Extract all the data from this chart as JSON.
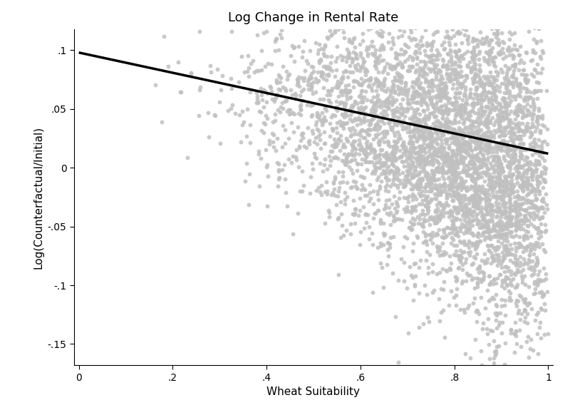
{
  "title": "Log Change in Rental Rate",
  "xlabel": "Wheat Suitability",
  "ylabel": "Log(Counterfactual/Initial)",
  "xlim": [
    -0.01,
    1.01
  ],
  "ylim": [
    -0.168,
    0.118
  ],
  "yticks": [
    0.1,
    0.05,
    0,
    -0.05,
    -0.1,
    -0.15
  ],
  "xticks": [
    0,
    0.2,
    0.4,
    0.6,
    0.8,
    1.0
  ],
  "xtick_labels": [
    "0",
    ".2",
    ".4",
    ".6",
    ".8",
    "1"
  ],
  "ytick_labels": [
    ".1",
    ".05",
    "0",
    "-.05",
    "-.1",
    "-.15"
  ],
  "fit_y_start": 0.098,
  "fit_y_end": 0.012,
  "scatter_color": "#c0c0c0",
  "fit_color": "#000000",
  "fit_linewidth": 2.5,
  "scatter_size": 18,
  "scatter_alpha": 0.85,
  "n_points": 5000,
  "seed": 42,
  "background_color": "#ffffff",
  "spine_color": "#000000",
  "title_fontsize": 13,
  "label_fontsize": 11,
  "tick_fontsize": 10
}
